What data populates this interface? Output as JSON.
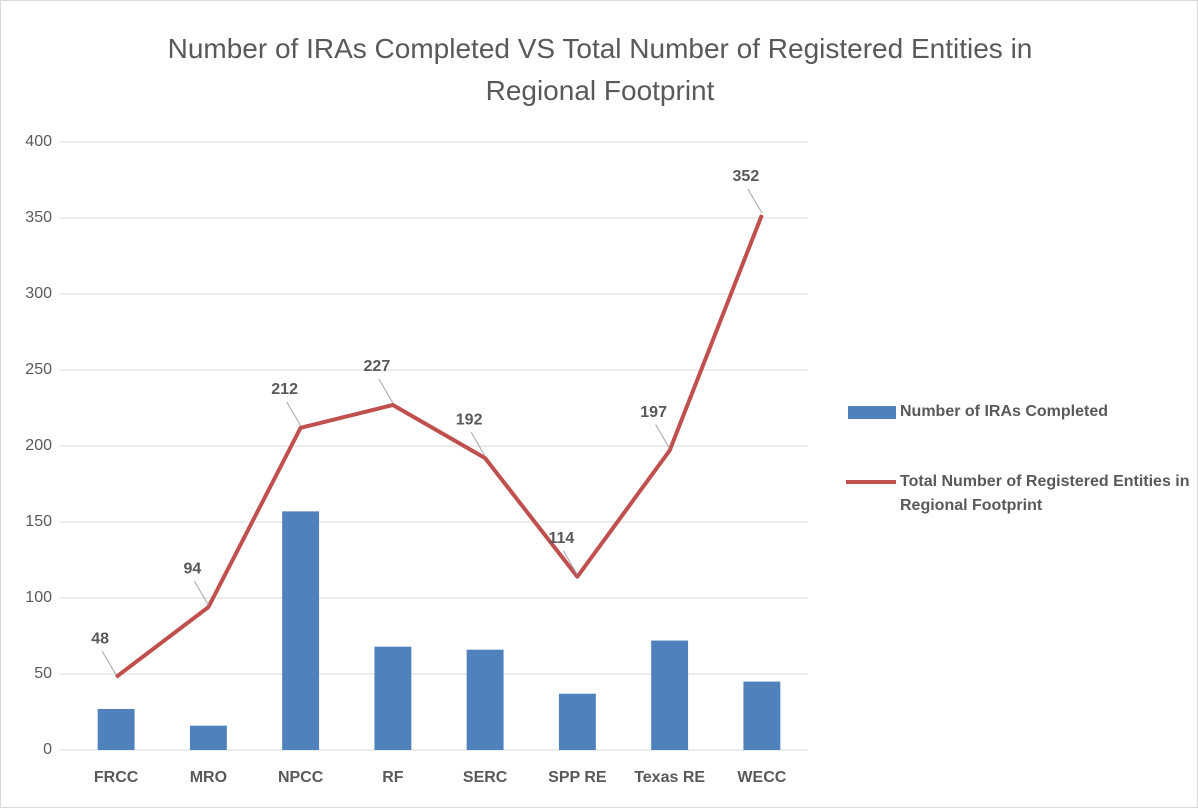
{
  "chart_data": {
    "type": "combo",
    "title": "Number of IRAs Completed VS Total Number of Registered Entities in Regional Footprint",
    "categories": [
      "FRCC",
      "MRO",
      "NPCC",
      "RF",
      "SERC",
      "SPP RE",
      "Texas RE",
      "WECC"
    ],
    "series": [
      {
        "name": "Number of IRAs Completed",
        "type": "bar",
        "color": "#4f81bd",
        "values": [
          27,
          16,
          157,
          68,
          66,
          37,
          72,
          45
        ]
      },
      {
        "name": "Total Number of Registered Entities in Regional Footprint",
        "type": "line",
        "color": "#c0504d",
        "values": [
          48,
          94,
          212,
          227,
          192,
          114,
          197,
          352
        ],
        "data_labels": true
      }
    ],
    "ylim": [
      0,
      400
    ],
    "yticks": [
      0,
      50,
      100,
      150,
      200,
      250,
      300,
      350,
      400
    ],
    "grid": true,
    "legend": "right"
  }
}
